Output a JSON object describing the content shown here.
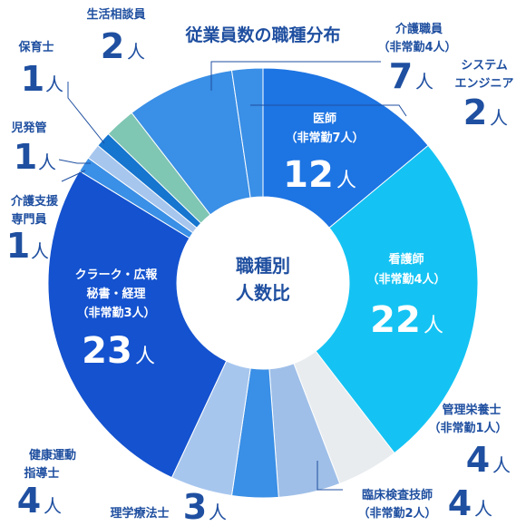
{
  "chart_data": {
    "type": "pie",
    "title": "従業員数の職種分布",
    "center_label": [
      "職種別",
      "人数比"
    ],
    "unit": "人",
    "slices": [
      {
        "name": "医師",
        "note": "（非常勤7人）",
        "value": 12,
        "color": "#1d74e3"
      },
      {
        "name": "看護師",
        "note": "（非常勤4人）",
        "value": 22,
        "color": "#14c3f3"
      },
      {
        "name": "管理栄養士",
        "note": "（非常勤1人）",
        "value": 4,
        "color": "#e8ecef"
      },
      {
        "name": "臨床検査技師",
        "note": "（非常勤2人）",
        "value": 4,
        "color": "#9fbfe8"
      },
      {
        "name": "理学療法士",
        "note": "",
        "value": 3,
        "color": "#3a8fe6"
      },
      {
        "name": "健康運動指導士",
        "note": "",
        "value": 4,
        "color": "#a7c6ee"
      },
      {
        "name": "クラーク・広報秘書・経理",
        "note": "（非常勤3人）",
        "value": 23,
        "color": "#1452cf"
      },
      {
        "name": "介護支援専門員",
        "note": "",
        "value": 1,
        "color": "#3a8fe6"
      },
      {
        "name": "児発管",
        "note": "",
        "value": 1,
        "color": "#a7c6ee"
      },
      {
        "name": "保育士",
        "note": "",
        "value": 1,
        "color": "#1575cf"
      },
      {
        "name": "生活相談員",
        "note": "",
        "value": 2,
        "color": "#7fc6b3"
      },
      {
        "name": "介護職員",
        "note": "（非常勤4人）",
        "value": 7,
        "color": "#3a8fe6"
      },
      {
        "name": "システムエンジニア",
        "note": "",
        "value": 2,
        "color": "#3a8fe6"
      }
    ],
    "label_text": {
      "inner": {
        "doctor": [
          "医師",
          "（非常勤7人）",
          "12",
          "人"
        ],
        "nurse": [
          "看護師",
          "（非常勤4人）",
          "22",
          "人"
        ],
        "clerk": [
          "クラーク・広報",
          "秘書・経理",
          "（非常勤3人）",
          "23",
          "人"
        ]
      },
      "outer": {
        "dietitian": [
          "管理栄養士",
          "（非常勤1人）",
          "4",
          "人"
        ],
        "lab": [
          "臨床検査技師",
          "（非常勤2人）",
          "4",
          "人"
        ],
        "pt": [
          "理学療法士",
          "3",
          "人"
        ],
        "exercise": [
          "健康運動",
          "指導士",
          "4",
          "人"
        ],
        "caremanager": [
          "介護支援",
          "専門員",
          "1",
          "人"
        ],
        "jihatsukan": [
          "児発管",
          "1",
          "人"
        ],
        "hoikushi": [
          "保育士",
          "1",
          "人"
        ],
        "soudanin": [
          "生活相談員",
          "2",
          "人"
        ],
        "kaigo": [
          "介護職員",
          "（非常勤4人）",
          "7",
          "人"
        ],
        "se": [
          "システム",
          "エンジニア",
          "2",
          "人"
        ]
      }
    }
  }
}
